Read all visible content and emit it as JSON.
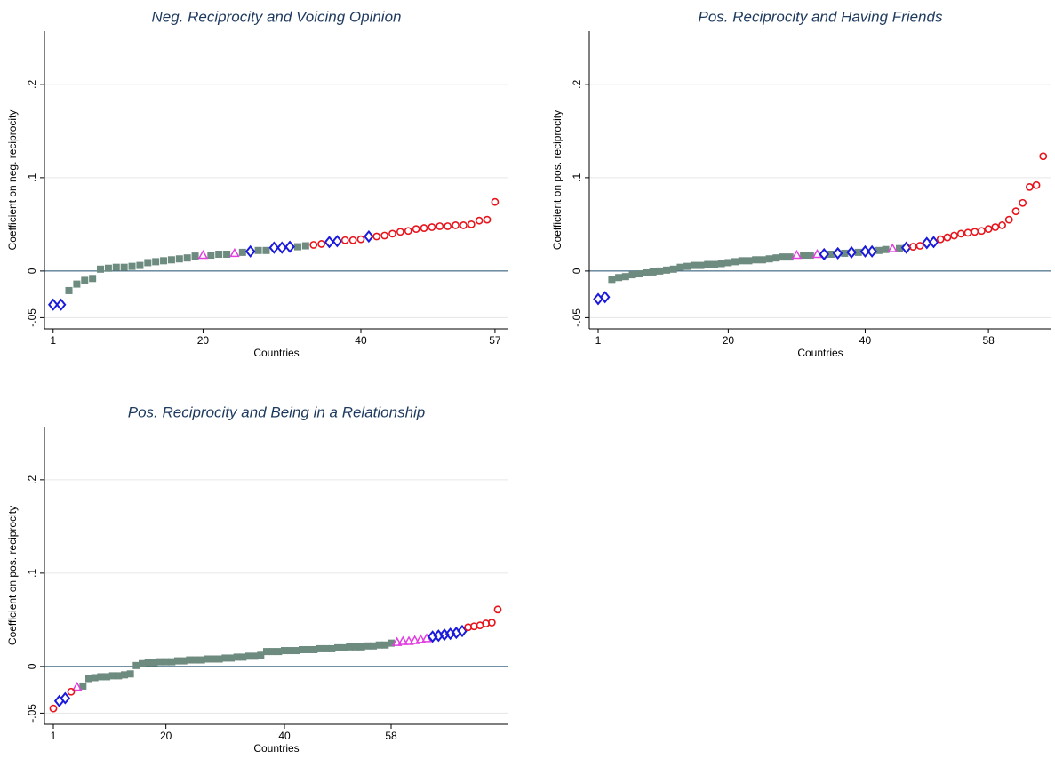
{
  "chart_data": [
    {
      "type": "scatter",
      "title": "Neg. Reciprocity and Voicing Opinion",
      "xlabel": "Countries",
      "ylabel": "Coefficient on neg. reciprocity",
      "xlim": [
        -0.1,
        58.7
      ],
      "ylim": [
        -0.062,
        0.257
      ],
      "xticks": [
        1,
        20,
        40,
        57
      ],
      "yticks": [
        {
          "value": -0.05,
          "label": "-.05"
        },
        0,
        {
          "value": 0.1,
          "label": ".1"
        },
        {
          "value": 0.2,
          "label": ".2"
        }
      ],
      "grid": true,
      "hline": 0,
      "series": [
        {
          "color": "#6e8b80",
          "marker": "square",
          "x": [
            3,
            4,
            5,
            6,
            7,
            8,
            9,
            10,
            11,
            12,
            13,
            14,
            15,
            16,
            17,
            18,
            19,
            21,
            22,
            23,
            25,
            27,
            28,
            32,
            33
          ],
          "values": [
            -0.021,
            -0.014,
            -0.01,
            -0.008,
            0.002,
            0.003,
            0.004,
            0.004,
            0.005,
            0.006,
            0.009,
            0.01,
            0.011,
            0.012,
            0.013,
            0.014,
            0.016,
            0.017,
            0.018,
            0.018,
            0.02,
            0.022,
            0.022,
            0.026,
            0.027
          ]
        },
        {
          "color": "#e23ee0",
          "marker": "triangle",
          "x": [
            20,
            24
          ],
          "values": [
            0.017,
            0.019
          ]
        },
        {
          "color": "#1a1adb",
          "marker": "diamond",
          "x": [
            1,
            2,
            26,
            29,
            30,
            31,
            36,
            37,
            41
          ],
          "values": [
            -0.036,
            -0.036,
            0.021,
            0.025,
            0.025,
            0.026,
            0.031,
            0.032,
            0.037
          ]
        },
        {
          "color": "#e8141c",
          "marker": "circle",
          "x": [
            34,
            35,
            38,
            39,
            40,
            42,
            43,
            44,
            45,
            46,
            47,
            48,
            49,
            50,
            51,
            52,
            53,
            54,
            55,
            56,
            57
          ],
          "values": [
            0.028,
            0.029,
            0.033,
            0.033,
            0.034,
            0.037,
            0.038,
            0.04,
            0.042,
            0.043,
            0.045,
            0.046,
            0.047,
            0.048,
            0.048,
            0.049,
            0.049,
            0.05,
            0.054,
            0.055,
            0.074
          ]
        }
      ]
    },
    {
      "type": "scatter",
      "title": "Pos. Reciprocity and Having Friends",
      "xlabel": "Countries",
      "ylabel": "Coefficient on pos. reciprocity",
      "xlim": [
        -0.3,
        67.2
      ],
      "ylim": [
        -0.062,
        0.257
      ],
      "xticks": [
        1,
        20,
        40,
        58
      ],
      "yticks": [
        {
          "value": -0.05,
          "label": "-.05"
        },
        0,
        {
          "value": 0.1,
          "label": ".1"
        },
        {
          "value": 0.2,
          "label": ".2"
        }
      ],
      "grid": true,
      "hline": 0,
      "series": [
        {
          "color": "#6e8b80",
          "marker": "square",
          "x": [
            3,
            4,
            5,
            6,
            7,
            8,
            9,
            10,
            11,
            12,
            13,
            14,
            15,
            16,
            17,
            18,
            19,
            20,
            21,
            22,
            23,
            24,
            25,
            26,
            27,
            28,
            29,
            31,
            32,
            35,
            37,
            39,
            42,
            43,
            45
          ],
          "values": [
            -0.009,
            -0.007,
            -0.006,
            -0.004,
            -0.003,
            -0.002,
            -0.001,
            0,
            0.001,
            0.002,
            0.004,
            0.005,
            0.006,
            0.006,
            0.007,
            0.007,
            0.008,
            0.009,
            0.01,
            0.011,
            0.011,
            0.012,
            0.012,
            0.013,
            0.014,
            0.015,
            0.015,
            0.017,
            0.017,
            0.018,
            0.019,
            0.02,
            0.022,
            0.023,
            0.024
          ]
        },
        {
          "color": "#e23ee0",
          "marker": "triangle",
          "x": [
            30,
            33,
            44
          ],
          "values": [
            0.017,
            0.018,
            0.024
          ]
        },
        {
          "color": "#1a1adb",
          "marker": "diamond",
          "x": [
            1,
            2,
            34,
            36,
            38,
            40,
            41,
            46,
            49,
            50
          ],
          "values": [
            -0.03,
            -0.028,
            0.018,
            0.019,
            0.02,
            0.021,
            0.021,
            0.025,
            0.03,
            0.031
          ]
        },
        {
          "color": "#e8141c",
          "marker": "circle",
          "x": [
            47,
            48,
            51,
            52,
            53,
            54,
            55,
            56,
            57,
            58,
            59,
            60,
            61,
            62,
            63,
            64,
            65,
            66
          ],
          "values": [
            0.026,
            0.027,
            0.034,
            0.036,
            0.038,
            0.04,
            0.041,
            0.042,
            0.043,
            0.045,
            0.047,
            0.049,
            0.055,
            0.064,
            0.073,
            0.09,
            0.092,
            0.123
          ]
        }
      ]
    },
    {
      "type": "scatter",
      "title": "Pos. Reciprocity and Being in a Relationship",
      "xlabel": "Countries",
      "ylabel": "Coefficient on pos. reciprocity",
      "xlim": [
        -0.5,
        77.8
      ],
      "ylim": [
        -0.062,
        0.257
      ],
      "xticks": [
        1,
        20,
        40,
        58
      ],
      "yticks": [
        {
          "value": -0.05,
          "label": "-.05"
        },
        0,
        {
          "value": 0.1,
          "label": ".1"
        },
        {
          "value": 0.2,
          "label": ".2"
        }
      ],
      "grid": true,
      "hline": 0,
      "series": [
        {
          "color": "#6e8b80",
          "marker": "square",
          "x": [
            6,
            7,
            8,
            9,
            10,
            11,
            12,
            13,
            14,
            15,
            16,
            17,
            18,
            19,
            20,
            21,
            22,
            23,
            24,
            25,
            26,
            27,
            28,
            29,
            30,
            31,
            32,
            33,
            34,
            35,
            36,
            37,
            38,
            39,
            40,
            41,
            42,
            43,
            44,
            45,
            46,
            47,
            48,
            49,
            50,
            51,
            52,
            53,
            54,
            55,
            56,
            57,
            58
          ],
          "values": [
            -0.021,
            -0.013,
            -0.012,
            -0.011,
            -0.011,
            -0.01,
            -0.01,
            -0.009,
            -0.008,
            0.001,
            0.003,
            0.004,
            0.004,
            0.005,
            0.005,
            0.005,
            0.006,
            0.006,
            0.007,
            0.007,
            0.007,
            0.008,
            0.008,
            0.008,
            0.009,
            0.009,
            0.01,
            0.01,
            0.011,
            0.011,
            0.012,
            0.016,
            0.016,
            0.016,
            0.017,
            0.017,
            0.017,
            0.018,
            0.018,
            0.018,
            0.019,
            0.019,
            0.019,
            0.02,
            0.02,
            0.021,
            0.021,
            0.021,
            0.022,
            0.022,
            0.023,
            0.023,
            0.025
          ]
        },
        {
          "color": "#e23ee0",
          "marker": "triangle",
          "x": [
            5,
            59,
            60,
            61,
            62,
            63,
            64
          ],
          "values": [
            -0.022,
            0.026,
            0.027,
            0.027,
            0.028,
            0.029,
            0.03
          ]
        },
        {
          "color": "#1a1adb",
          "marker": "diamond",
          "x": [
            2,
            3,
            65,
            66,
            67,
            68,
            69,
            70
          ],
          "values": [
            -0.037,
            -0.034,
            0.032,
            0.033,
            0.034,
            0.035,
            0.036,
            0.038
          ]
        },
        {
          "color": "#e8141c",
          "marker": "circle",
          "x": [
            1,
            4,
            71,
            72,
            73,
            74,
            75,
            76
          ],
          "values": [
            -0.045,
            -0.027,
            0.042,
            0.043,
            0.044,
            0.046,
            0.047,
            0.061
          ]
        }
      ]
    }
  ]
}
